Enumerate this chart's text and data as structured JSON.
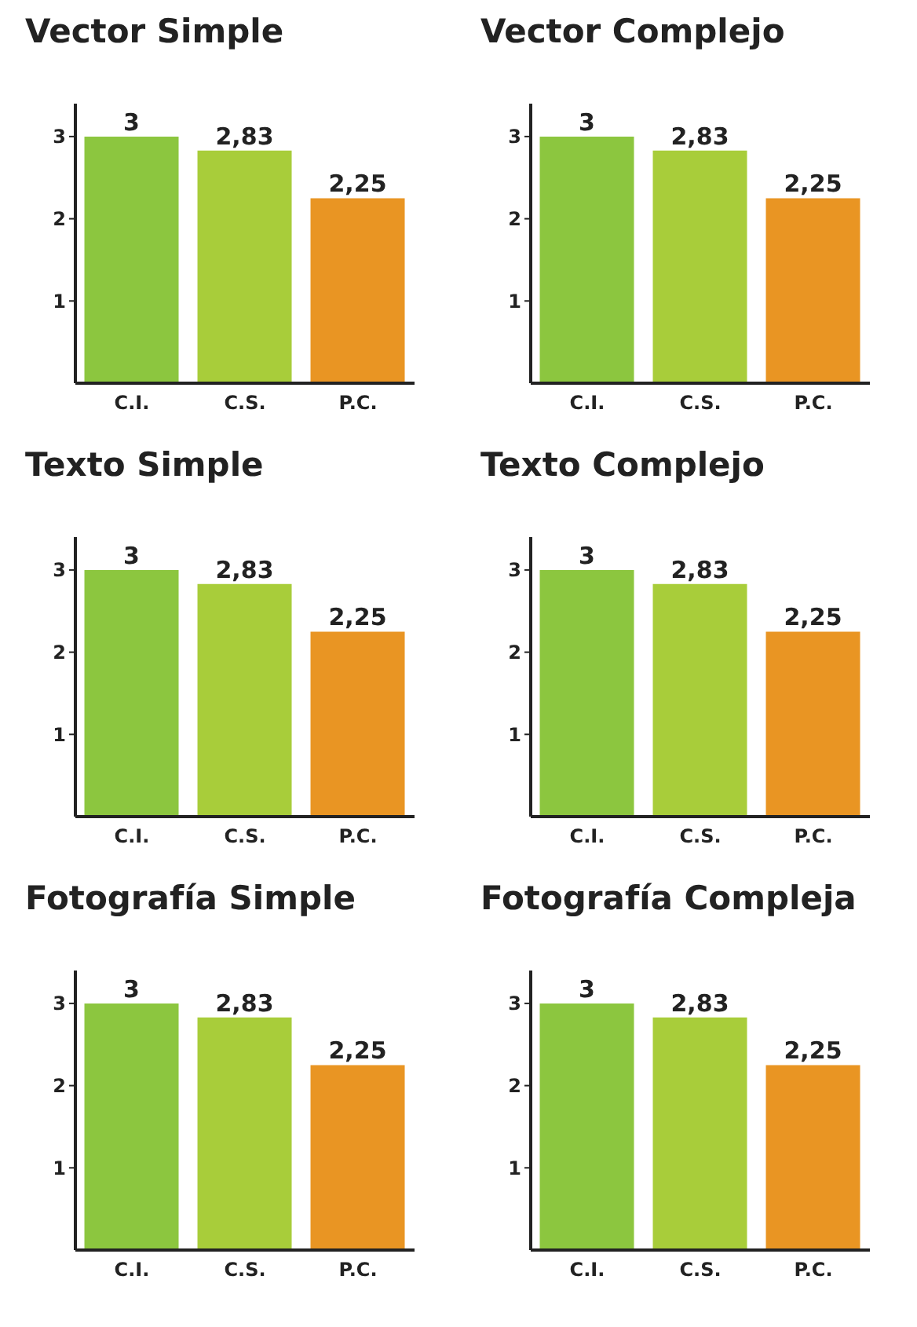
{
  "chart_data": [
    {
      "type": "bar",
      "title": "Vector Simple",
      "categories": [
        "C.I.",
        "C.S.",
        "P.C."
      ],
      "values": [
        3,
        2.83,
        2.25
      ],
      "colors": [
        "#8cc63f",
        "#a8cd3a",
        "#e99523"
      ],
      "value_labels": [
        "3",
        "2,83",
        "2,25"
      ],
      "ylim": [
        0,
        3.4
      ],
      "yticks": [
        1,
        2,
        3
      ]
    },
    {
      "type": "bar",
      "title": "Vector Complejo",
      "categories": [
        "C.I.",
        "C.S.",
        "P.C."
      ],
      "values": [
        3,
        2.83,
        2.25
      ],
      "colors": [
        "#8cc63f",
        "#a8cd3a",
        "#e99523"
      ],
      "value_labels": [
        "3",
        "2,83",
        "2,25"
      ],
      "ylim": [
        0,
        3.4
      ],
      "yticks": [
        1,
        2,
        3
      ]
    },
    {
      "type": "bar",
      "title": "Texto Simple",
      "categories": [
        "C.I.",
        "C.S.",
        "P.C."
      ],
      "values": [
        3,
        2.83,
        2.25
      ],
      "colors": [
        "#8cc63f",
        "#a8cd3a",
        "#e99523"
      ],
      "value_labels": [
        "3",
        "2,83",
        "2,25"
      ],
      "ylim": [
        0,
        3.4
      ],
      "yticks": [
        1,
        2,
        3
      ]
    },
    {
      "type": "bar",
      "title": "Texto Complejo",
      "categories": [
        "C.I.",
        "C.S.",
        "P.C."
      ],
      "values": [
        3,
        2.83,
        2.25
      ],
      "colors": [
        "#8cc63f",
        "#a8cd3a",
        "#e99523"
      ],
      "value_labels": [
        "3",
        "2,83",
        "2,25"
      ],
      "ylim": [
        0,
        3.4
      ],
      "yticks": [
        1,
        2,
        3
      ]
    },
    {
      "type": "bar",
      "title": "Fotografía Simple",
      "categories": [
        "C.I.",
        "C.S.",
        "P.C."
      ],
      "values": [
        3,
        2.83,
        2.25
      ],
      "colors": [
        "#8cc63f",
        "#a8cd3a",
        "#e99523"
      ],
      "value_labels": [
        "3",
        "2,83",
        "2,25"
      ],
      "ylim": [
        0,
        3.4
      ],
      "yticks": [
        1,
        2,
        3
      ]
    },
    {
      "type": "bar",
      "title": "Fotografía Compleja",
      "categories": [
        "C.I.",
        "C.S.",
        "P.C."
      ],
      "values": [
        3,
        2.83,
        2.25
      ],
      "colors": [
        "#8cc63f",
        "#a8cd3a",
        "#e99523"
      ],
      "value_labels": [
        "3",
        "2,83",
        "2,25"
      ],
      "ylim": [
        0,
        3.4
      ],
      "yticks": [
        1,
        2,
        3
      ]
    }
  ]
}
